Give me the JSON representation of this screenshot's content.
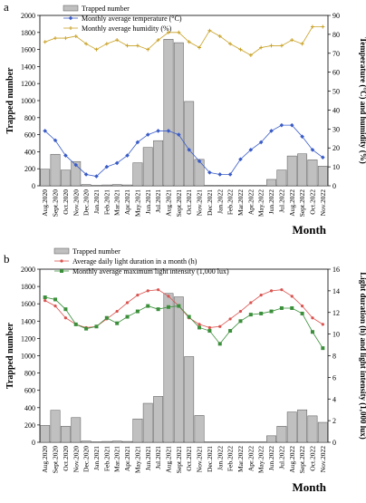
{
  "chart_data": [
    {
      "panel": "a",
      "type": "bar+line",
      "title": "",
      "categories": [
        "Aug.2020",
        "Sept.2020",
        "Oct.2020",
        "Nov.2020",
        "Dec.2020",
        "Jan.2021",
        "Feb.2021",
        "Mar.2021",
        "Apr.2021",
        "May.2021",
        "Jun.2021",
        "Jul.2021",
        "Aug.2021",
        "Sept.2021",
        "Oct.2021",
        "Nov.2021",
        "Dec.2021",
        "Jan.2022",
        "Feb.2022",
        "Mar.2022",
        "Apr.2022",
        "May.2022",
        "Jun.2022",
        "Jul.2022",
        "Aug.2022",
        "Sept.2022",
        "Oct.2022",
        "Nov.2022"
      ],
      "xlabel": "Month",
      "ylabel": "Trapped number",
      "ylabel_right": "Temperature (°C) and humidity (%)",
      "ylim": [
        0,
        2000
      ],
      "yticks": [
        0,
        200,
        400,
        600,
        800,
        1000,
        1200,
        1400,
        1600,
        1800,
        2000
      ],
      "ylim_right": [
        0,
        90
      ],
      "yticks_right": [
        0,
        10,
        20,
        30,
        40,
        50,
        60,
        70,
        80,
        90
      ],
      "legend_position": "top-left",
      "series": [
        {
          "name": "Trapped number",
          "type": "bar",
          "axis": "left",
          "color": "#c0c0c0",
          "values": [
            195,
            370,
            185,
            285,
            15,
            5,
            10,
            15,
            10,
            270,
            450,
            530,
            1720,
            1680,
            990,
            310,
            5,
            5,
            5,
            5,
            5,
            5,
            75,
            185,
            350,
            375,
            305,
            230
          ]
        },
        {
          "name": "Monthly average temperature (°C)",
          "type": "line",
          "axis": "right",
          "color": "#3a5cc8",
          "marker": "diamond",
          "values": [
            29,
            24,
            16,
            11,
            6,
            5,
            10,
            12,
            16,
            23,
            27,
            29,
            29,
            27,
            19,
            13,
            7,
            6,
            6,
            14,
            19,
            23,
            29,
            32,
            32,
            26,
            19,
            15
          ]
        },
        {
          "name": "Monthly average humidity (%)",
          "type": "line",
          "axis": "right",
          "color": "#c9a227",
          "marker": "plus",
          "values": [
            76,
            78,
            78,
            79,
            75,
            72,
            75,
            77,
            74,
            74,
            72,
            77,
            81,
            81,
            76,
            73,
            82,
            79,
            75,
            72,
            69,
            73,
            74,
            74,
            77,
            75,
            84,
            84
          ]
        }
      ]
    },
    {
      "panel": "b",
      "type": "bar+line",
      "title": "",
      "categories": [
        "Aug.2020",
        "Sept.2020",
        "Oct.2020",
        "Nov.2020",
        "Dec.2020",
        "Jan.2021",
        "Feb.2021",
        "Mar.2021",
        "Apr.2021",
        "May.2021",
        "Jun.2021",
        "Jul.2021",
        "Aug.2021",
        "Sept.2021",
        "Oct.2021",
        "Nov.2021",
        "Dec.2021",
        "Jan.2022",
        "Feb.2022",
        "Mar.2022",
        "Apr.2022",
        "May.2022",
        "Jun.2022",
        "Jul.2022",
        "Aug.2022",
        "Sept.2022",
        "Oct.2022",
        "Nov.2022"
      ],
      "xlabel": "Month",
      "ylabel": "Trapped number",
      "ylabel_right": "Light duration (h) and light intensity (1,000 lux)",
      "ylim": [
        0,
        2000
      ],
      "yticks": [
        0,
        200,
        400,
        600,
        800,
        1000,
        1200,
        1400,
        1600,
        1800,
        2000
      ],
      "ylim_right": [
        0,
        16
      ],
      "yticks_right": [
        0,
        2,
        4,
        6,
        8,
        10,
        12,
        14,
        16
      ],
      "legend_position": "top-left",
      "series": [
        {
          "name": "Trapped number",
          "type": "bar",
          "axis": "left",
          "color": "#c0c0c0",
          "values": [
            195,
            370,
            185,
            285,
            15,
            5,
            10,
            15,
            10,
            270,
            450,
            530,
            1720,
            1680,
            990,
            310,
            5,
            5,
            5,
            5,
            5,
            5,
            75,
            185,
            350,
            375,
            305,
            230
          ]
        },
        {
          "name": "Average daily light duration in a month (h)",
          "type": "line",
          "axis": "right",
          "color": "#d9534f",
          "marker": "dot",
          "values": [
            13.1,
            12.6,
            11.5,
            10.9,
            10.6,
            10.7,
            11.4,
            12.1,
            12.9,
            13.6,
            14.0,
            14.1,
            13.5,
            12.6,
            11.5,
            10.9,
            10.6,
            10.7,
            11.4,
            12.1,
            12.9,
            13.6,
            14.0,
            14.1,
            13.5,
            12.6,
            11.5,
            10.9
          ]
        },
        {
          "name": "Monthly average maximum light intensity (1,000 lux)",
          "type": "line",
          "axis": "right",
          "color": "#3b8f3b",
          "marker": "square",
          "values": [
            13.4,
            13.2,
            12.3,
            10.9,
            10.5,
            10.7,
            11.5,
            11.0,
            11.6,
            12.1,
            12.6,
            12.3,
            12.5,
            12.6,
            11.6,
            10.6,
            10.3,
            9.1,
            10.3,
            11.2,
            11.8,
            11.9,
            12.1,
            12.4,
            12.4,
            11.9,
            10.2,
            8.7
          ]
        }
      ]
    }
  ],
  "panels": [
    {
      "letter": "a"
    },
    {
      "letter": "b"
    }
  ]
}
